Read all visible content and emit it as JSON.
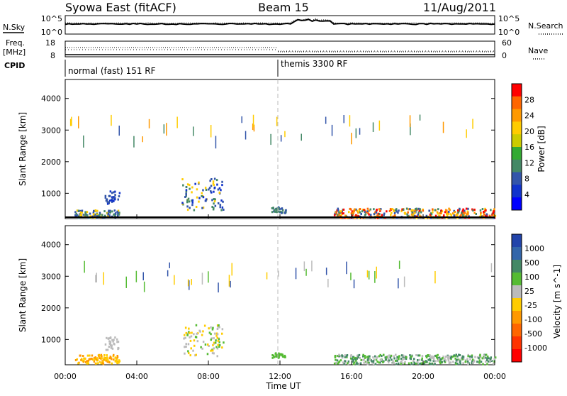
{
  "header": {
    "title_left": "Syowa East (fitACF)",
    "title_center": "Beam 15",
    "title_right": "11/Aug/2011"
  },
  "top_panels": {
    "nsky_label": "N.Sky",
    "nsky_ticks": [
      "10^5",
      "10^0"
    ],
    "nsearch_label": "N.Search",
    "nsearch_ticks": [
      "10^5",
      "10^0"
    ],
    "freq_label_top": "Freq.",
    "freq_label_unit": "[MHz]",
    "freq_ticks": [
      "18",
      "8"
    ],
    "nave_label": "Nave",
    "nave_ticks": [
      "60",
      "0"
    ],
    "cpid_label": "CPID",
    "cpid_segments": [
      {
        "label": "normal (fast) 151 RF",
        "start_hour": 0
      },
      {
        "label": "themis 3300 RF",
        "start_hour": 12
      }
    ]
  },
  "chart_data": [
    {
      "type": "heatmap",
      "title": "",
      "ylabel": "Slant Range [km]",
      "xlabel": "",
      "xlim_hours": [
        0,
        24
      ],
      "ylim": [
        200,
        4600
      ],
      "yticks": [
        "1000",
        "2000",
        "3000",
        "4000"
      ],
      "colorbar_label": "Power [dB]",
      "colorbar_ticks": [
        "28",
        "24",
        "20",
        "16",
        "12",
        "8",
        "4"
      ],
      "colorbar_colors": [
        "#ff0000",
        "#ff6600",
        "#ff9900",
        "#ffcc00",
        "#cccc00",
        "#33aa33",
        "#448866",
        "#3355aa",
        "#1133cc",
        "#0000ff"
      ],
      "scatter_regions": [
        {
          "t0": 0.5,
          "t1": 3.0,
          "r0": 250,
          "r1": 500,
          "colors": [
            "#448866",
            "#3355aa",
            "#ffcc00"
          ]
        },
        {
          "t0": 2.2,
          "t1": 3.0,
          "r0": 700,
          "r1": 1100,
          "colors": [
            "#3355aa",
            "#1133cc"
          ]
        },
        {
          "t0": 6.5,
          "t1": 8.8,
          "r0": 500,
          "r1": 1500,
          "colors": [
            "#3355aa",
            "#448866",
            "#ffcc00",
            "#1133cc"
          ]
        },
        {
          "t0": 11.5,
          "t1": 12.3,
          "r0": 400,
          "r1": 600,
          "colors": [
            "#448866",
            "#3355aa"
          ]
        },
        {
          "t0": 15.0,
          "t1": 24.0,
          "r0": 250,
          "r1": 550,
          "colors": [
            "#448866",
            "#3355aa",
            "#ffcc00",
            "#ff9900",
            "#ff0000",
            "#ff6600"
          ]
        }
      ]
    },
    {
      "type": "heatmap",
      "title": "",
      "ylabel": "Slant Range [km]",
      "xlabel": "Time UT",
      "xticks": [
        "00:00",
        "04:00",
        "08:00",
        "12:00",
        "16:00",
        "20:00",
        "00:00"
      ],
      "xlim_hours": [
        0,
        24
      ],
      "ylim": [
        200,
        4600
      ],
      "yticks": [
        "1000",
        "2000",
        "3000",
        "4000"
      ],
      "colorbar_label": "Velocity [m s^-1]",
      "colorbar_ticks": [
        "1000",
        "500",
        "100",
        "25",
        "-25",
        "-100",
        "-500",
        "-1000"
      ],
      "colorbar_colors": [
        "#2244aa",
        "#3366aa",
        "#448866",
        "#55bb33",
        "#bbbbbb",
        "#ffcc00",
        "#ff9900",
        "#ff6600",
        "#ff3300",
        "#ff0000"
      ],
      "scatter_regions": [
        {
          "t0": 0.5,
          "t1": 3.0,
          "r0": 250,
          "r1": 550,
          "colors": [
            "#ff9900",
            "#ffcc00"
          ]
        },
        {
          "t0": 2.2,
          "t1": 3.0,
          "r0": 700,
          "r1": 1100,
          "colors": [
            "#bbbbbb"
          ]
        },
        {
          "t0": 6.5,
          "t1": 8.8,
          "r0": 500,
          "r1": 1500,
          "colors": [
            "#bbbbbb",
            "#ffcc00",
            "#55bb33"
          ]
        },
        {
          "t0": 11.5,
          "t1": 12.3,
          "r0": 450,
          "r1": 600,
          "colors": [
            "#55bb33"
          ]
        },
        {
          "t0": 15.0,
          "t1": 24.0,
          "r0": 250,
          "r1": 550,
          "colors": [
            "#448866",
            "#55bb33",
            "#bbbbbb"
          ]
        }
      ]
    }
  ]
}
